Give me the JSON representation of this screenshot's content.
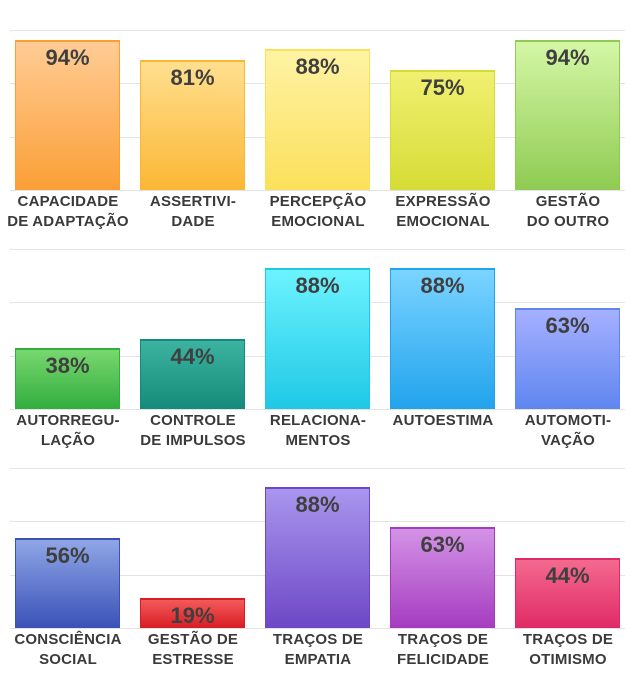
{
  "chart_data": [
    {
      "type": "bar",
      "ylim": [
        0,
        100
      ],
      "grid": true,
      "categories": [
        [
          "CAPACIDADE",
          "DE ADAPTAÇÃO"
        ],
        [
          "ASSERTIVI-",
          "DADE"
        ],
        [
          "PERCEPÇÃO",
          "EMOCIONAL"
        ],
        [
          "EXPRESSÃO",
          "EMOCIONAL"
        ],
        [
          "GESTÃO",
          "DO OUTRO"
        ]
      ],
      "values": [
        94,
        81,
        88,
        75,
        94
      ],
      "value_labels": [
        "94%",
        "81%",
        "88%",
        "75%",
        "94%"
      ],
      "colors": [
        [
          "#ffcc95",
          "#fb9f35"
        ],
        [
          "#ffdf8f",
          "#fbb734"
        ],
        [
          "#fff3a4",
          "#fbe05a"
        ],
        [
          "#f1f071",
          "#d6dc35"
        ],
        [
          "#d4f7a6",
          "#8fcb52"
        ]
      ]
    },
    {
      "type": "bar",
      "ylim": [
        0,
        100
      ],
      "grid": true,
      "categories": [
        [
          "AUTORREGU-",
          "LAÇÃO"
        ],
        [
          "CONTROLE",
          "DE IMPULSOS"
        ],
        [
          "RELACIONA-",
          "MENTOS"
        ],
        [
          "AUTOESTIMA"
        ],
        [
          "AUTOMOTI-",
          "VAÇÃO"
        ]
      ],
      "values": [
        38,
        44,
        88,
        88,
        63
      ],
      "value_labels": [
        "38%",
        "44%",
        "88%",
        "88%",
        "63%"
      ],
      "colors": [
        [
          "#78d86f",
          "#32ad3e"
        ],
        [
          "#3cb3a0",
          "#158a7a"
        ],
        [
          "#6cf3ff",
          "#1fc8e6"
        ],
        [
          "#7ad4ff",
          "#22a3ed"
        ],
        [
          "#a6b0ff",
          "#5f86f0"
        ]
      ]
    },
    {
      "type": "bar",
      "ylim": [
        0,
        100
      ],
      "grid": true,
      "categories": [
        [
          "CONSCIÊNCIA",
          "SOCIAL"
        ],
        [
          "GESTÃO DE",
          "ESTRESSE"
        ],
        [
          "TRAÇOS DE",
          "EMPATIA"
        ],
        [
          "TRAÇOS DE",
          "FELICIDADE"
        ],
        [
          "TRAÇOS DE",
          "OTIMISMO"
        ]
      ],
      "values": [
        56,
        19,
        88,
        63,
        44
      ],
      "value_labels": [
        "56%",
        "19%",
        "88%",
        "63%",
        "44%"
      ],
      "colors": [
        [
          "#8fa6e6",
          "#3a52b8"
        ],
        [
          "#f35a5a",
          "#d81d24"
        ],
        [
          "#a996ee",
          "#6d47c6"
        ],
        [
          "#d493e6",
          "#a53cc0"
        ],
        [
          "#f46a8f",
          "#e02a66"
        ]
      ]
    }
  ]
}
